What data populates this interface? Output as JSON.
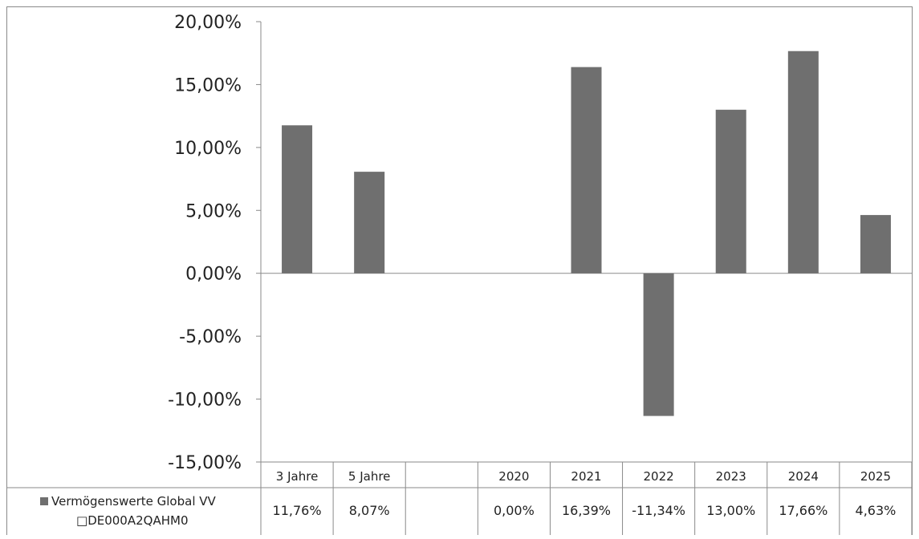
{
  "chart_data": {
    "type": "bar",
    "categories": [
      "3 Jahre",
      "5 Jahre",
      "",
      "2020",
      "2021",
      "2022",
      "2023",
      "2024",
      "2025"
    ],
    "series": [
      {
        "name": "Vermögenswerte Global VV",
        "isin": "DE000A2QAHM0",
        "values": [
          11.76,
          8.07,
          null,
          0.0,
          16.39,
          -11.34,
          13.0,
          17.66,
          4.63
        ],
        "value_labels": [
          "11,76%",
          "8,07%",
          "",
          "0,00%",
          "16,39%",
          "-11,34%",
          "13,00%",
          "17,66%",
          "4,63%"
        ],
        "color": "#6f6f6f"
      }
    ],
    "y_ticks": [
      20,
      15,
      10,
      5,
      0,
      -5,
      -10,
      -15
    ],
    "y_tick_labels": [
      "20,00%",
      "15,00%",
      "10,00%",
      "5,00%",
      "0,00%",
      "-5,00%",
      "-10,00%",
      "-15,00%"
    ],
    "ylim": [
      -15,
      20
    ],
    "grid": false,
    "legend": "data-table-left"
  },
  "legend": {
    "line1": "Vermögenswerte Global VV",
    "line2": "DE000A2QAHM0"
  }
}
